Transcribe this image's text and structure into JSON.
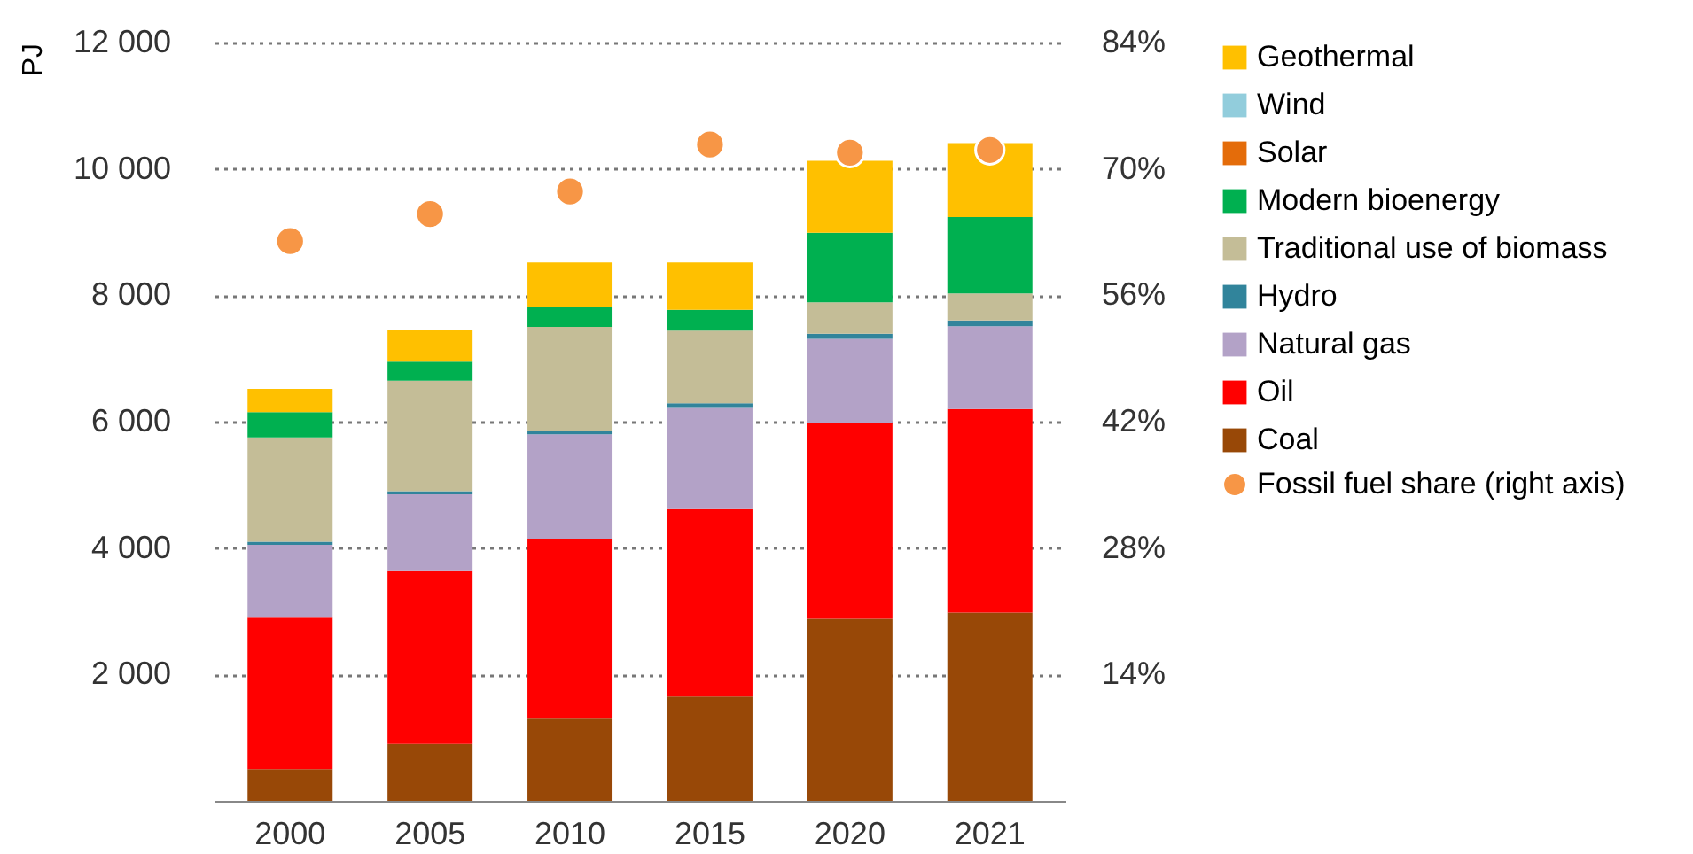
{
  "chart_data": {
    "type": "bar",
    "stacked": true,
    "ylabel": "PJ",
    "categories": [
      "2000",
      "2005",
      "2010",
      "2015",
      "2020",
      "2021"
    ],
    "series": [
      {
        "name": "Coal",
        "color": "#984807",
        "values": [
          500,
          900,
          1300,
          1650,
          2880,
          2980
        ]
      },
      {
        "name": "Oil",
        "color": "#ff0000",
        "values": [
          2400,
          2750,
          2850,
          2980,
          3100,
          3220
        ]
      },
      {
        "name": "Natural gas",
        "color": "#b3a2c7",
        "values": [
          1150,
          1200,
          1650,
          1600,
          1330,
          1310
        ]
      },
      {
        "name": "Hydro",
        "color": "#31849b",
        "values": [
          50,
          50,
          50,
          60,
          80,
          90
        ]
      },
      {
        "name": "Traditional use of biomass",
        "color": "#c4bd97",
        "values": [
          1650,
          1750,
          1650,
          1150,
          500,
          430
        ]
      },
      {
        "name": "Modern bioenergy",
        "color": "#00b050",
        "values": [
          400,
          300,
          320,
          330,
          1100,
          1210
        ]
      },
      {
        "name": "Solar",
        "color": "#e46c0a",
        "values": [
          0,
          0,
          0,
          0,
          0,
          0
        ]
      },
      {
        "name": "Wind",
        "color": "#92cddc",
        "values": [
          0,
          0,
          0,
          0,
          0,
          0
        ]
      },
      {
        "name": "Geothermal",
        "color": "#ffc000",
        "values": [
          370,
          500,
          700,
          750,
          1140,
          1170
        ]
      },
      {
        "name": "Fossil fuel share (right axis)",
        "type": "scatter",
        "axis": "y2",
        "color": "#f79646",
        "values": [
          62,
          65,
          67.5,
          72.7,
          71.8,
          72.1
        ]
      }
    ],
    "ylim": [
      0,
      12000
    ],
    "yticks": [
      {
        "value": 2000,
        "label": "2 000"
      },
      {
        "value": 4000,
        "label": "4 000"
      },
      {
        "value": 6000,
        "label": "6 000"
      },
      {
        "value": 8000,
        "label": "8 000"
      },
      {
        "value": 10000,
        "label": "10 000"
      },
      {
        "value": 12000,
        "label": "12 000"
      }
    ],
    "y2lim": [
      0,
      84
    ],
    "y2ticks": [
      {
        "value": 14,
        "label": "14%"
      },
      {
        "value": 28,
        "label": "28%"
      },
      {
        "value": 42,
        "label": "42%"
      },
      {
        "value": 56,
        "label": "56%"
      },
      {
        "value": 70,
        "label": "70%"
      },
      {
        "value": 84,
        "label": "84%"
      }
    ],
    "marker": "circle",
    "grid": "y",
    "legend": "right"
  }
}
